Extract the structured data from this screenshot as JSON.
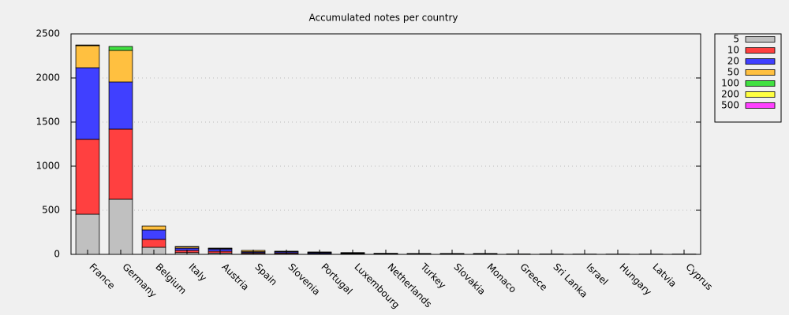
{
  "chart_data": {
    "type": "stacked_bar",
    "title": "Accumulated notes per country",
    "categories": [
      "France",
      "Germany",
      "Belgium",
      "Italy",
      "Austria",
      "Spain",
      "Slovenia",
      "Portugal",
      "Luxembourg",
      "Netherlands",
      "Turkey",
      "Slovakia",
      "Monaco",
      "Greece",
      "Sri Lanka",
      "Israel",
      "Hungary",
      "Latvia",
      "Cyprus"
    ],
    "series": [
      {
        "name": "5",
        "color": "#c0c0c0",
        "values": [
          455,
          625,
          80,
          20,
          15,
          10,
          8,
          5,
          5,
          3,
          3,
          3,
          3,
          2,
          1,
          1,
          1,
          1,
          1
        ]
      },
      {
        "name": "10",
        "color": "#ff4040",
        "values": [
          849,
          795,
          90,
          25,
          20,
          10,
          10,
          7,
          5,
          4,
          3,
          3,
          3,
          1,
          1,
          1,
          1,
          1,
          1
        ]
      },
      {
        "name": "20",
        "color": "#4040ff",
        "values": [
          812,
          535,
          107,
          25,
          25,
          10,
          12,
          10,
          6,
          3,
          2,
          2,
          2,
          1,
          1,
          1,
          1,
          1,
          1
        ]
      },
      {
        "name": "50",
        "color": "#ffc040",
        "values": [
          250,
          357,
          44,
          15,
          8,
          15,
          6,
          5,
          4,
          2,
          2,
          2,
          2,
          1,
          1,
          0,
          0,
          0,
          0
        ]
      },
      {
        "name": "100",
        "color": "#40e040",
        "values": [
          3,
          45,
          0,
          4,
          3,
          0,
          0,
          0,
          0,
          0,
          0,
          0,
          0,
          0,
          0,
          0,
          0,
          0,
          0
        ]
      },
      {
        "name": "200",
        "color": "#ffff40",
        "values": [
          0,
          0,
          0,
          0,
          0,
          0,
          0,
          0,
          0,
          0,
          0,
          0,
          0,
          0,
          0,
          0,
          0,
          0,
          0
        ]
      },
      {
        "name": "500",
        "color": "#ff40ff",
        "values": [
          5,
          0,
          0,
          0,
          0,
          0,
          0,
          0,
          0,
          0,
          0,
          0,
          0,
          0,
          0,
          0,
          0,
          0,
          0
        ]
      }
    ],
    "ylim": [
      0,
      2500
    ],
    "yticks": [
      0,
      500,
      1000,
      1500,
      2000,
      2500
    ],
    "grid": true,
    "legend": "outside right"
  }
}
